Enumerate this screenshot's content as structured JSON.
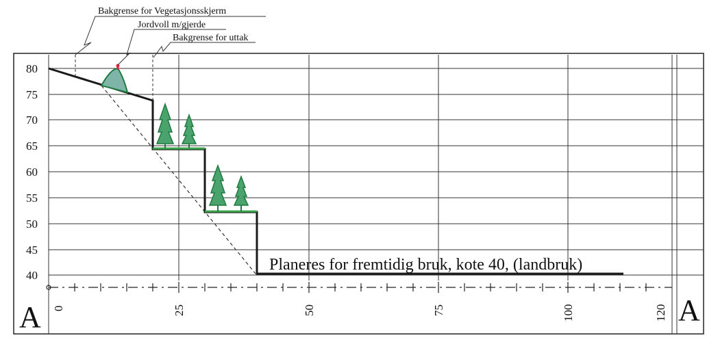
{
  "diagram": {
    "labels": {
      "vegetation_limit": "Bakgrense for Vegetasjonsskjerm",
      "soil_bank": "Jordvoll m/gjerde",
      "extraction_limit": "Bakgrense for uttak",
      "leveled_note": "Planeres for fremtidig bruk, kote 40, (landbruk)"
    },
    "section_marks": {
      "left": "A",
      "right": "A"
    },
    "y_axis": {
      "ticks": [
        "80",
        "75",
        "70",
        "65",
        "60",
        "55",
        "50",
        "45",
        "40"
      ]
    },
    "x_axis": {
      "ticks": [
        "0",
        "25",
        "50",
        "75",
        "100",
        "120"
      ]
    },
    "colors": {
      "tree_fill": "#4aa36d",
      "tree_stroke": "#1f7a3f",
      "bank_fill": "#7fb5a8",
      "fence": "#e0203a",
      "terrace_line": "#3aa24a"
    }
  }
}
